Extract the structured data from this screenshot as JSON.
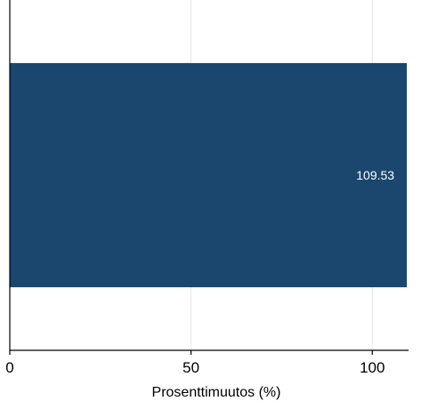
{
  "chart_data": {
    "type": "bar",
    "orientation": "horizontal",
    "categories": [
      ""
    ],
    "values": [
      109.53
    ],
    "data_labels": [
      "109.53"
    ],
    "xlabel": "Prosenttimuutos (%)",
    "ylabel": "",
    "xlim": [
      0,
      110
    ],
    "xticks": [
      0,
      50,
      100
    ],
    "xtick_labels": [
      "0",
      "50",
      "100"
    ],
    "grid": true,
    "legend": "none",
    "colors": {
      "bar": "#1b476e",
      "grid": "#e6e6e6",
      "axis": "#000000",
      "label_inside": "#ffffff"
    }
  }
}
